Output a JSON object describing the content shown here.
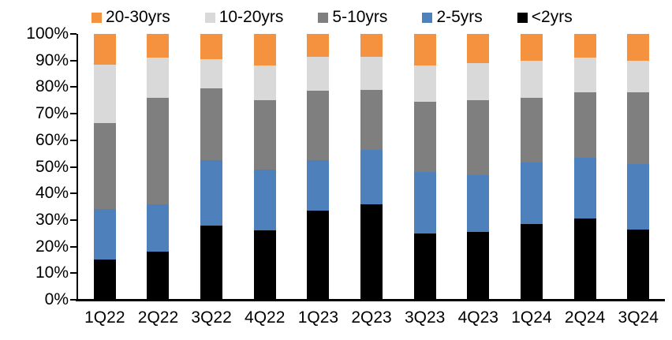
{
  "chart_data": {
    "type": "bar",
    "stacking": "percent",
    "title": "",
    "xlabel": "",
    "ylabel": "",
    "ylim": [
      0,
      100
    ],
    "y_tick_step": 10,
    "grid": false,
    "legend_position": "top",
    "y_ticks": [
      "100%",
      "90%",
      "80%",
      "70%",
      "60%",
      "50%",
      "40%",
      "30%",
      "20%",
      "10%",
      "0%"
    ],
    "categories": [
      "1Q22",
      "2Q22",
      "3Q22",
      "4Q22",
      "1Q23",
      "2Q23",
      "3Q23",
      "4Q23",
      "1Q24",
      "2Q24",
      "3Q24"
    ],
    "series": [
      {
        "name": "<2yrs",
        "color": "#000000",
        "values": [
          15,
          18,
          28,
          26,
          33.5,
          36,
          25,
          25.5,
          28.5,
          30.5,
          26.5
        ]
      },
      {
        "name": "2-5yrs",
        "color": "#4E80BC",
        "values": [
          19,
          18,
          24.5,
          23,
          19,
          20.5,
          23,
          21.5,
          23,
          23,
          24.5
        ]
      },
      {
        "name": "5-10yrs",
        "color": "#7F7F7F",
        "values": [
          32.5,
          40,
          27,
          26,
          26,
          22.5,
          26.5,
          28,
          24.5,
          24.5,
          27
        ]
      },
      {
        "name": "10-20yrs",
        "color": "#D9D9D9",
        "values": [
          22,
          15,
          11,
          13,
          13,
          12.5,
          13.5,
          14,
          14,
          13,
          12
        ]
      },
      {
        "name": "20-30yrs",
        "color": "#F4923F",
        "values": [
          11.5,
          9,
          9.5,
          12,
          8.5,
          8.5,
          12,
          11,
          10,
          9,
          10
        ]
      }
    ],
    "legend_display_order": [
      "20-30yrs",
      "10-20yrs",
      "5-10yrs",
      "2-5yrs",
      "<2yrs"
    ],
    "axis_color": "#000000"
  }
}
